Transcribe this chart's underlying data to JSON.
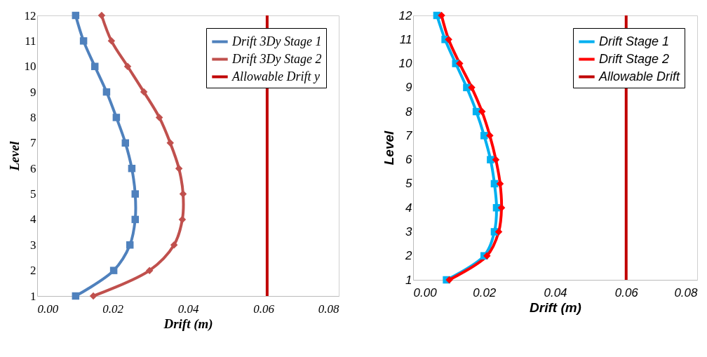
{
  "chart_data": [
    {
      "type": "line",
      "xlabel": "Drift  (m)",
      "ylabel": "Level",
      "xlim": [
        0,
        0.08
      ],
      "ylim": [
        1,
        12
      ],
      "xticks": [
        {
          "value": 0,
          "label": "0.00"
        },
        {
          "value": 0.02,
          "label": "0.02"
        },
        {
          "value": 0.04,
          "label": "0.04"
        },
        {
          "value": 0.06,
          "label": "0.06"
        },
        {
          "value": 0.08,
          "label": "0.08"
        }
      ],
      "yticks": [
        1,
        2,
        3,
        4,
        5,
        6,
        7,
        8,
        9,
        10,
        11,
        12
      ],
      "legend": "top right",
      "grid": false,
      "series": [
        {
          "name": "Drift 3Dy Stage 1",
          "color": "#4f81bd",
          "marker": "square",
          "x": [
            0.0102,
            0.0203,
            0.0246,
            0.026,
            0.026,
            0.0251,
            0.0234,
            0.021,
            0.0184,
            0.0153,
            0.0123,
            0.0102
          ],
          "values": [
            1,
            2,
            3,
            4,
            5,
            6,
            7,
            8,
            9,
            10,
            11,
            12
          ]
        },
        {
          "name": "Drift 3Dy Stage 2",
          "color": "#c0504d",
          "marker": "diamond",
          "x": [
            0.0149,
            0.0298,
            0.0363,
            0.0385,
            0.0387,
            0.0376,
            0.0353,
            0.0324,
            0.0283,
            0.024,
            0.0197,
            0.0171
          ],
          "values": [
            1,
            2,
            3,
            4,
            5,
            6,
            7,
            8,
            9,
            10,
            11,
            12
          ]
        }
      ],
      "ref_lines": [
        {
          "axis": "x",
          "value": 0.061,
          "label": "Allowable Drift y",
          "color": "#c00000"
        }
      ]
    },
    {
      "type": "line",
      "xlabel": "Drift (m)",
      "ylabel": "Level",
      "xlim": [
        0,
        0.08
      ],
      "ylim": [
        1,
        12
      ],
      "xticks": [
        {
          "value": 0,
          "label": "0.00"
        },
        {
          "value": 0.02,
          "label": "0.02"
        },
        {
          "value": 0.04,
          "label": "0.04"
        },
        {
          "value": 0.06,
          "label": "0.06"
        },
        {
          "value": 0.08,
          "label": "0.08"
        }
      ],
      "yticks": [
        1,
        2,
        3,
        4,
        5,
        6,
        7,
        8,
        9,
        10,
        11,
        12
      ],
      "legend": "top right",
      "grid": false,
      "series": [
        {
          "name": "Drift Stage 1",
          "color": "#00b0f0",
          "marker": "square",
          "x": [
            0.0094,
            0.02,
            0.0229,
            0.0235,
            0.0229,
            0.0218,
            0.02,
            0.0178,
            0.0151,
            0.012,
            0.009,
            0.0067
          ],
          "values": [
            1,
            2,
            3,
            4,
            5,
            6,
            7,
            8,
            9,
            10,
            11,
            12
          ]
        },
        {
          "name": "Drift Stage 2",
          "color": "#ff0000",
          "marker": "diamond",
          "x": [
            0.0102,
            0.0208,
            0.0241,
            0.0249,
            0.0245,
            0.0233,
            0.0216,
            0.0194,
            0.0165,
            0.0131,
            0.01,
            0.008
          ],
          "values": [
            1,
            2,
            3,
            4,
            5,
            6,
            7,
            8,
            9,
            10,
            11,
            12
          ]
        }
      ],
      "ref_lines": [
        {
          "axis": "x",
          "value": 0.06,
          "label": "Allowable Drift",
          "color": "#c00000"
        }
      ]
    }
  ]
}
